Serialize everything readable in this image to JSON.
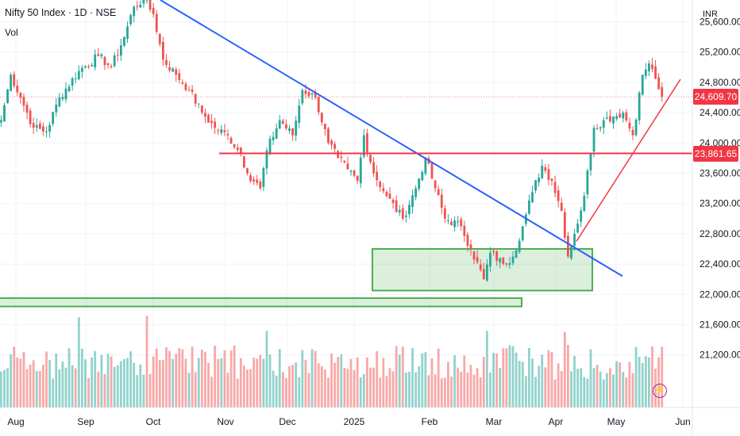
{
  "header": {
    "title": "Nifty 50 Index · 1D · NSE",
    "volume_label": "Vol",
    "currency": "INR"
  },
  "price_tags": {
    "last": {
      "text": "24,609.70",
      "color": "#f23645"
    },
    "horizontal_level": {
      "text": "23,861.65",
      "color": "#f23645"
    }
  },
  "icons": {
    "flash": "lightning-icon"
  },
  "chart_data": {
    "type": "candlestick",
    "y_ticks": [
      "25,600.00",
      "25,200.00",
      "24,800.00",
      "24,400.00",
      "24,000.00",
      "23,600.00",
      "23,200.00",
      "22,800.00",
      "22,400.00",
      "22,000.00",
      "21,600.00",
      "21,200.00"
    ],
    "y_tick_values": [
      25600,
      25200,
      24800,
      24400,
      24000,
      23600,
      23200,
      22800,
      22400,
      22000,
      21600,
      21200
    ],
    "x_ticks": [
      "Aug",
      "Sep",
      "Oct",
      "Nov",
      "Dec",
      "2025",
      "Feb",
      "Mar",
      "Apr",
      "May",
      "Jun"
    ],
    "colors": {
      "up": "#26a69a",
      "down": "#ef5350",
      "trend_down": "#2962ff",
      "trend_up": "#f23645",
      "level": "#f23645",
      "zone": "#4caf50"
    },
    "last_price": 24609.7,
    "level_price": 23861.65,
    "anchors": [
      {
        "i": 0,
        "c": 24300
      },
      {
        "i": 3,
        "c": 24900
      },
      {
        "i": 6,
        "c": 24600
      },
      {
        "i": 10,
        "c": 24200
      },
      {
        "i": 14,
        "c": 24150
      },
      {
        "i": 18,
        "c": 24600
      },
      {
        "i": 24,
        "c": 24950
      },
      {
        "i": 30,
        "c": 25150
      },
      {
        "i": 34,
        "c": 25000
      },
      {
        "i": 38,
        "c": 25400
      },
      {
        "i": 41,
        "c": 25800
      },
      {
        "i": 44,
        "c": 25900
      },
      {
        "i": 47,
        "c": 25700
      },
      {
        "i": 50,
        "c": 25100
      },
      {
        "i": 54,
        "c": 24900
      },
      {
        "i": 58,
        "c": 24700
      },
      {
        "i": 62,
        "c": 24400
      },
      {
        "i": 66,
        "c": 24200
      },
      {
        "i": 70,
        "c": 24100
      },
      {
        "i": 74,
        "c": 23850
      },
      {
        "i": 76,
        "c": 23600
      },
      {
        "i": 80,
        "c": 23400
      },
      {
        "i": 82,
        "c": 23900
      },
      {
        "i": 86,
        "c": 24300
      },
      {
        "i": 90,
        "c": 24100
      },
      {
        "i": 93,
        "c": 24700
      },
      {
        "i": 97,
        "c": 24600
      },
      {
        "i": 101,
        "c": 24000
      },
      {
        "i": 104,
        "c": 23800
      },
      {
        "i": 107,
        "c": 23650
      },
      {
        "i": 110,
        "c": 23500
      },
      {
        "i": 112,
        "c": 24100
      },
      {
        "i": 115,
        "c": 23600
      },
      {
        "i": 119,
        "c": 23300
      },
      {
        "i": 124,
        "c": 23000
      },
      {
        "i": 128,
        "c": 23400
      },
      {
        "i": 131,
        "c": 23800
      },
      {
        "i": 134,
        "c": 23400
      },
      {
        "i": 137,
        "c": 23000
      },
      {
        "i": 142,
        "c": 22900
      },
      {
        "i": 145,
        "c": 22600
      },
      {
        "i": 149,
        "c": 22200
      },
      {
        "i": 151,
        "c": 22550
      },
      {
        "i": 155,
        "c": 22400
      },
      {
        "i": 158,
        "c": 22500
      },
      {
        "i": 161,
        "c": 22900
      },
      {
        "i": 164,
        "c": 23350
      },
      {
        "i": 167,
        "c": 23700
      },
      {
        "i": 170,
        "c": 23500
      },
      {
        "i": 173,
        "c": 23100
      },
      {
        "i": 175,
        "c": 22500
      },
      {
        "i": 177,
        "c": 22800
      },
      {
        "i": 180,
        "c": 23300
      },
      {
        "i": 183,
        "c": 24200
      },
      {
        "i": 186,
        "c": 24300
      },
      {
        "i": 189,
        "c": 24350
      },
      {
        "i": 192,
        "c": 24400
      },
      {
        "i": 195,
        "c": 24100
      },
      {
        "i": 198,
        "c": 24900
      },
      {
        "i": 200,
        "c": 25050
      },
      {
        "i": 202,
        "c": 24850
      },
      {
        "i": 204,
        "c": 24609.7
      }
    ]
  }
}
